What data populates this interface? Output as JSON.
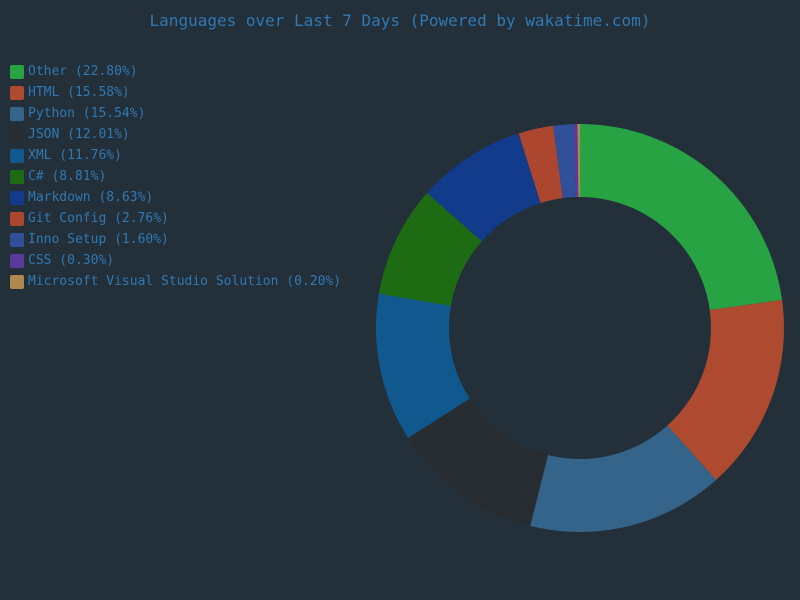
{
  "page": {
    "background": "#232f39",
    "text_color": "#3079b4"
  },
  "header": {
    "title": "Languages over Last 7 Days (Powered by wakatime.com)"
  },
  "chart_data": {
    "type": "pie",
    "donut": true,
    "title": "Languages over Last 7 Days (Powered by wakatime.com)",
    "legend_position": "top-left",
    "start_angle_deg": 0,
    "direction": "clockwise",
    "inner_radius_ratio": 0.64,
    "slices": [
      {
        "label": "Other",
        "value": 22.8,
        "color": "#27a344",
        "legend_text": "Other (22.80%)"
      },
      {
        "label": "HTML",
        "value": 15.58,
        "color": "#ae4a30",
        "legend_text": "HTML (15.58%)"
      },
      {
        "label": "Python",
        "value": 15.54,
        "color": "#34648a",
        "legend_text": "Python (15.54%)"
      },
      {
        "label": "JSON",
        "value": 12.01,
        "color": "#272c31",
        "legend_text": "JSON (12.01%)"
      },
      {
        "label": "XML",
        "value": 11.76,
        "color": "#11588f",
        "legend_text": "XML (11.76%)"
      },
      {
        "label": "C#",
        "value": 8.81,
        "color": "#1d6c13",
        "legend_text": "C# (8.81%)"
      },
      {
        "label": "Markdown",
        "value": 8.63,
        "color": "#123c8b",
        "legend_text": "Markdown (8.63%)"
      },
      {
        "label": "Git Config",
        "value": 2.76,
        "color": "#ad462f",
        "legend_text": "Git Config (2.76%)"
      },
      {
        "label": "Inno Setup",
        "value": 1.6,
        "color": "#30509c",
        "legend_text": "Inno Setup (1.60%)"
      },
      {
        "label": "CSS",
        "value": 0.3,
        "color": "#5b3a9a",
        "legend_text": "CSS (0.30%)"
      },
      {
        "label": "Microsoft Visual Studio Solution",
        "value": 0.2,
        "color": "#b0894e",
        "legend_text": "Microsoft Visual Studio Solution (0.20%)"
      }
    ]
  }
}
